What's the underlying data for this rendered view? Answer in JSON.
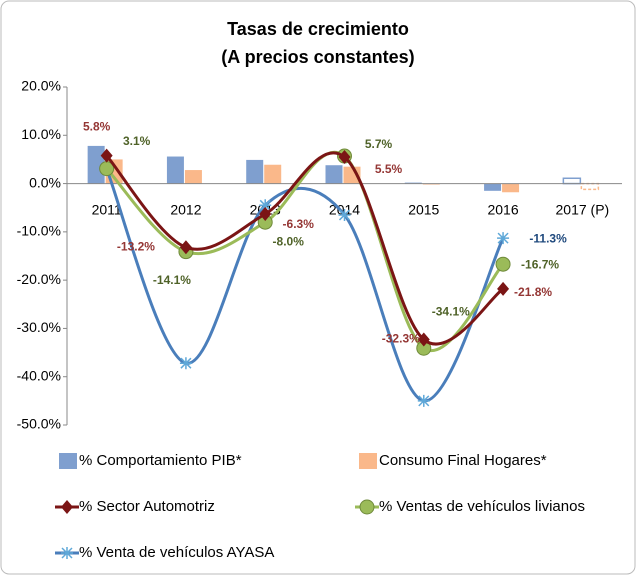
{
  "chart_data": {
    "type": "bar",
    "title": "Tasas de crecimiento",
    "subtitle": "(A precios constantes)",
    "categories": [
      "2011",
      "2012",
      "2013",
      "2014",
      "2015",
      "2016",
      "2017 (P)"
    ],
    "ylim": [
      -50,
      20
    ],
    "yticks": [
      {
        "value": 20,
        "label": "20.0%"
      },
      {
        "value": 10,
        "label": "10.0%"
      },
      {
        "value": 0,
        "label": "0.0%"
      },
      {
        "value": -10,
        "label": "-10.0%"
      },
      {
        "value": -20,
        "label": "-20.0%"
      },
      {
        "value": -30,
        "label": "-30.0%"
      },
      {
        "value": -40,
        "label": "-40.0%"
      },
      {
        "value": -50,
        "label": "-50.0%"
      }
    ],
    "grid": false,
    "series": [
      {
        "name": "% Comportamiento PIB*",
        "type": "bar",
        "color": "#7f9fcf",
        "values": [
          7.8,
          5.6,
          4.9,
          3.8,
          0.2,
          -1.5,
          1.1
        ]
      },
      {
        "name": "Consumo Final Hogares*",
        "type": "bar",
        "color": "#fab88a",
        "values": [
          5.0,
          2.8,
          3.9,
          3.5,
          -0.2,
          -1.8,
          -1.2
        ]
      },
      {
        "name": "% Sector Automotriz",
        "type": "line",
        "marker": "diamond",
        "color": "#7b1515",
        "values": [
          5.8,
          -13.2,
          -6.3,
          5.5,
          -32.3,
          -21.8,
          null
        ],
        "value_labels": [
          "5.8%",
          "-13.2%",
          "-6.3%",
          "5.5%",
          "-32.3%",
          "-21.8%",
          null
        ]
      },
      {
        "name": "% Ventas de vehículos livianos",
        "type": "line",
        "marker": "circle",
        "color": "#9bbb59",
        "values": [
          3.1,
          -14.1,
          -8.0,
          5.7,
          -34.1,
          -16.7,
          null
        ],
        "value_labels": [
          "3.1%",
          "-14.1%",
          "-8.0%",
          "5.7%",
          "-34.1%",
          "-16.7%",
          null
        ]
      },
      {
        "name": "% Venta de vehículos AYASA",
        "type": "line",
        "marker": "star",
        "color": "#4a7ebb",
        "values": [
          3.0,
          -37.2,
          -4.5,
          -6.5,
          -45.0,
          -11.3,
          null
        ],
        "value_labels": [
          null,
          null,
          null,
          null,
          null,
          "-11.3%",
          null
        ]
      }
    ]
  }
}
